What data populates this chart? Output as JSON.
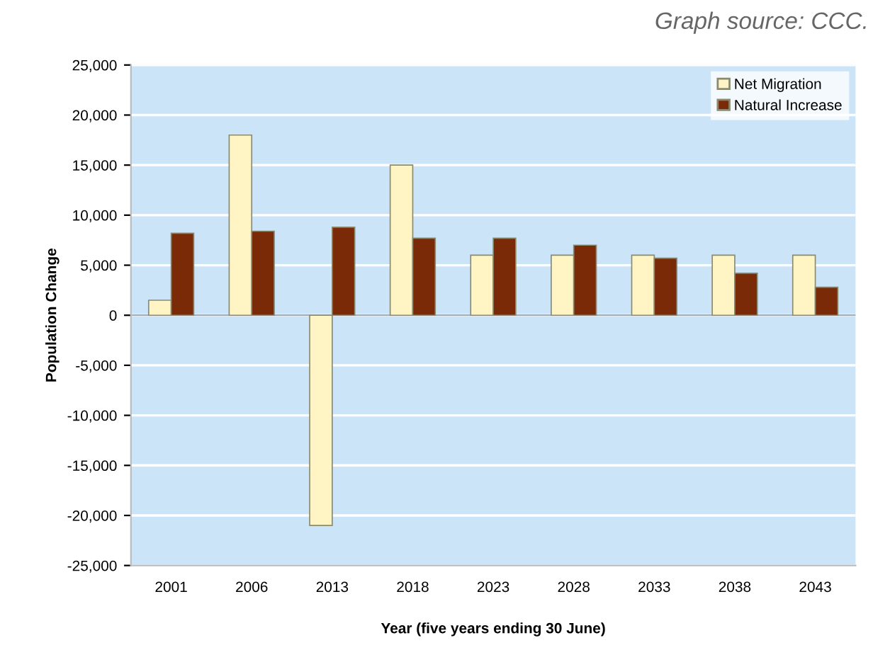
{
  "chart_data": {
    "type": "bar",
    "xlabel": "Year (five years ending 30 June)",
    "ylabel": "Population Change",
    "annotations": [
      "Graph source: CCC."
    ],
    "categories": [
      "2001",
      "2006",
      "2013",
      "2018",
      "2023",
      "2028",
      "2033",
      "2038",
      "2043"
    ],
    "series": [
      {
        "name": "Net Migration",
        "color": "#fff5c4",
        "values": [
          1500,
          18000,
          -21000,
          15000,
          6000,
          6000,
          6000,
          6000,
          6000
        ]
      },
      {
        "name": "Natural Increase",
        "color": "#7a2a06",
        "values": [
          8200,
          8400,
          8800,
          7700,
          7700,
          7000,
          5700,
          4200,
          2800
        ]
      }
    ],
    "ylim": [
      -25000,
      25000
    ],
    "yticks": [
      {
        "value": -25000,
        "label": "-25,000"
      },
      {
        "value": -20000,
        "label": "-20,000"
      },
      {
        "value": -15000,
        "label": "-15,000"
      },
      {
        "value": -10000,
        "label": "-10,000"
      },
      {
        "value": -5000,
        "label": "-5,000"
      },
      0,
      {
        "value": 5000,
        "label": "5,000"
      },
      {
        "value": 10000,
        "label": "10,000"
      },
      {
        "value": 15000,
        "label": "15,000"
      },
      {
        "value": 20000,
        "label": "20,000"
      },
      {
        "value": 25000,
        "label": "25,000"
      }
    ],
    "grid": "y",
    "legend": "top right"
  }
}
